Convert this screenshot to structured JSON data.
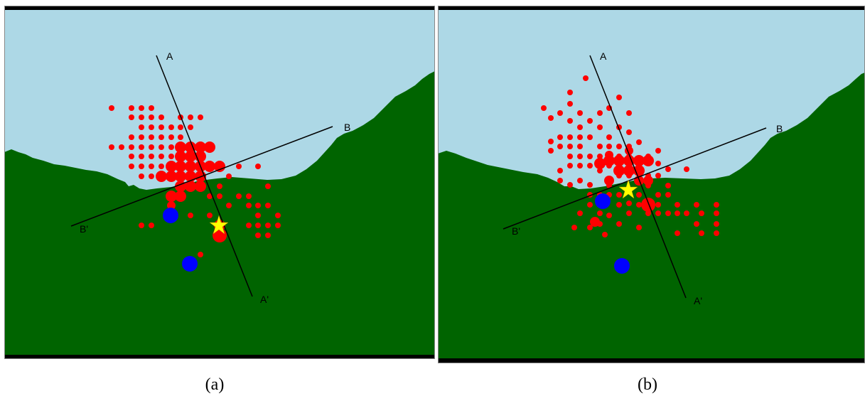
{
  "colors": {
    "sea": "#add8e6",
    "land": "#006400",
    "event": "#ff0000",
    "station": "#0000ff",
    "mainshock": "#ffff00",
    "frame": "#000000"
  },
  "panels": [
    {
      "id": "a",
      "caption": "(a)",
      "profile_labels": {
        "a": "A",
        "a_prime": "A'",
        "b": "B",
        "b_prime": "B'"
      }
    },
    {
      "id": "b",
      "caption": "(b)",
      "profile_labels": {
        "a": "A",
        "a_prime": "A'",
        "b": "B",
        "b_prime": "B'"
      }
    }
  ]
}
